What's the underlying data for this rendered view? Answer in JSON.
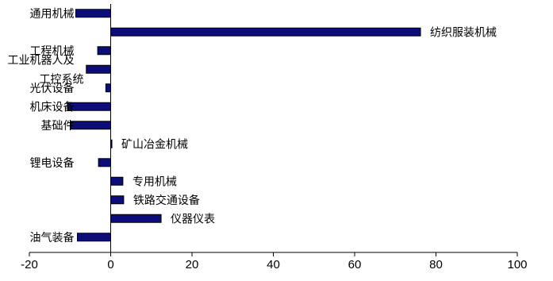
{
  "chart_data": {
    "type": "bar",
    "orientation": "horizontal",
    "categories": [
      "通用机械",
      "纺织服装机械",
      "工程机械",
      "工业机器人及工控系统",
      "光伏设备",
      "机床设备",
      "基础件",
      "矿山冶金机械",
      "锂电设备",
      "专用机械",
      "铁路交通设备",
      "仪器仪表",
      "油气装备"
    ],
    "label_lines": [
      [
        "通用机械"
      ],
      [
        "纺织服装机械"
      ],
      [
        "工程机械"
      ],
      [
        "工业机器人及",
        "工控系统"
      ],
      [
        "光伏设备"
      ],
      [
        "机床设备"
      ],
      [
        "基础件"
      ],
      [
        "矿山冶金机械"
      ],
      [
        "锂电设备"
      ],
      [
        "专用机械"
      ],
      [
        "铁路交通设备"
      ],
      [
        "仪器仪表"
      ],
      [
        "油气装备"
      ]
    ],
    "values": [
      -8.6,
      76.2,
      -3.2,
      -6.0,
      -1.2,
      -10.6,
      -9.8,
      0.3,
      -3.0,
      3.0,
      3.2,
      12.4,
      -8.2
    ],
    "xlim": [
      -20,
      100
    ],
    "xticks": [
      "-20",
      "0",
      "20",
      "40",
      "60",
      "80",
      "100"
    ],
    "tick_values": [
      -20,
      0,
      20,
      40,
      60,
      80,
      100
    ],
    "bar_color": "#0d0d7a",
    "bar_edge": "#000000",
    "grid": false,
    "legend": "none"
  }
}
